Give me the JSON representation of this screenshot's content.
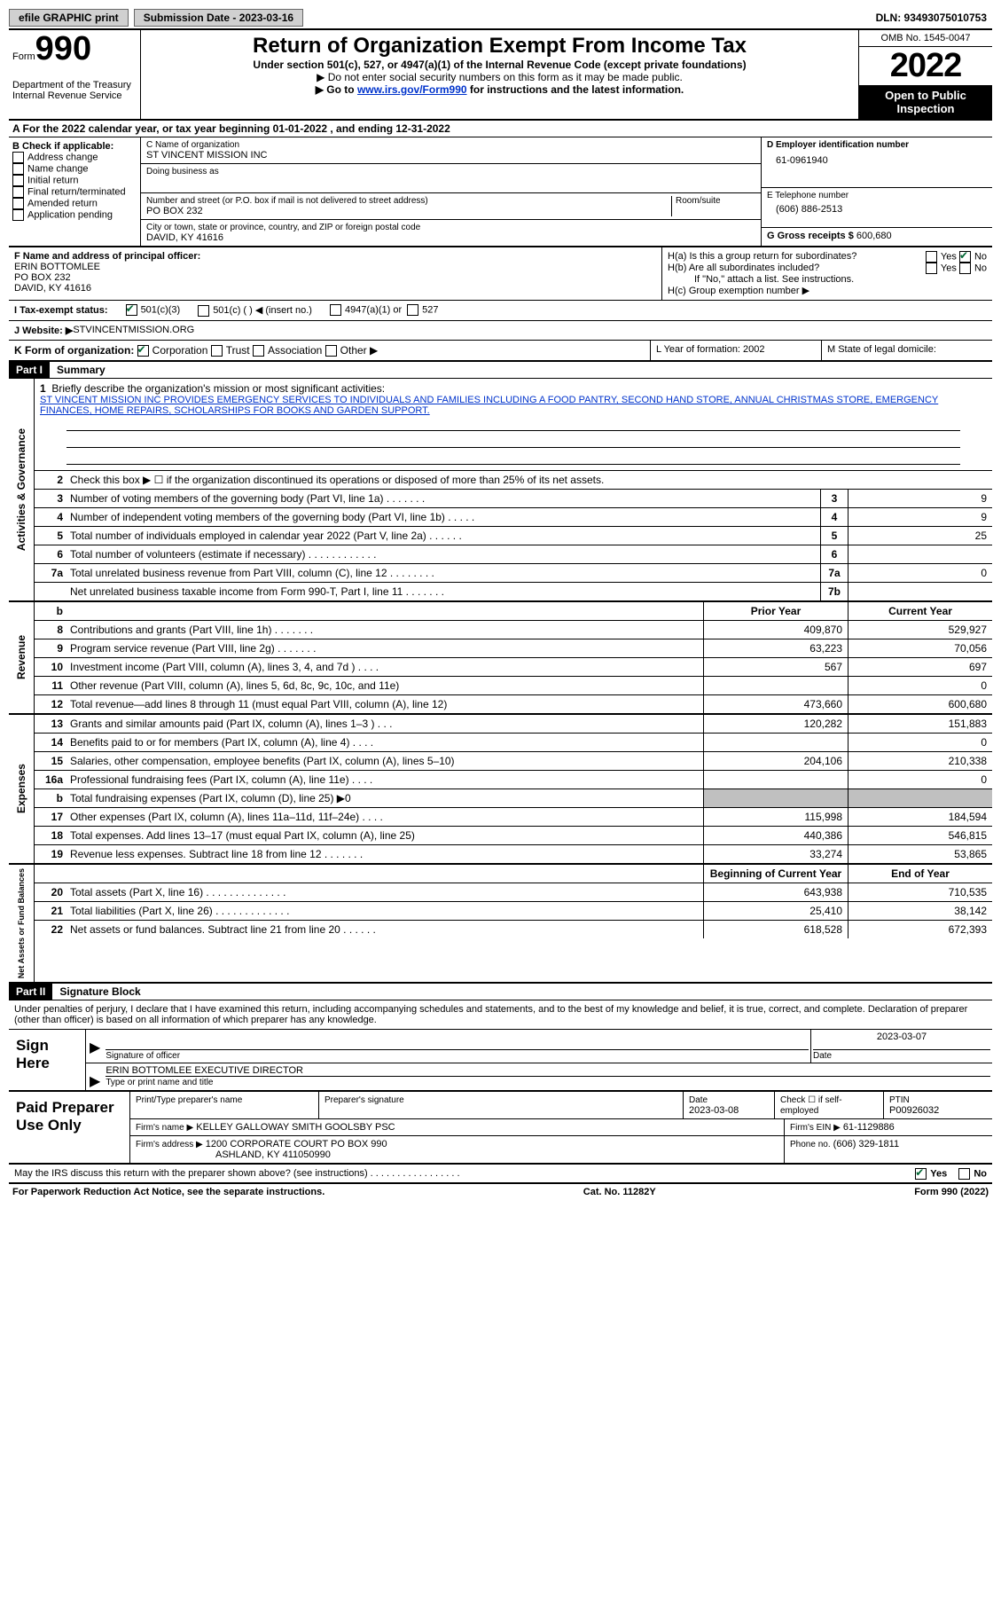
{
  "topbar": {
    "efile_label": "efile GRAPHIC print",
    "submission_label": "Submission Date - 2023-03-16",
    "dln": "DLN: 93493075010753"
  },
  "header": {
    "form_prefix": "Form",
    "form_number": "990",
    "title": "Return of Organization Exempt From Income Tax",
    "subtitle": "Under section 501(c), 527, or 4947(a)(1) of the Internal Revenue Code (except private foundations)",
    "note1": "▶ Do not enter social security numbers on this form as it may be made public.",
    "note2_prefix": "▶ Go to ",
    "note2_link": "www.irs.gov/Form990",
    "note2_suffix": " for instructions and the latest information.",
    "dept": "Department of the Treasury",
    "irs": "Internal Revenue Service",
    "omb": "OMB No. 1545-0047",
    "year": "2022",
    "open": "Open to Public Inspection"
  },
  "sectionA": "A For the 2022 calendar year, or tax year beginning 01-01-2022     , and ending 12-31-2022",
  "colB": {
    "label": "B Check if applicable:",
    "items": [
      "Address change",
      "Name change",
      "Initial return",
      "Final return/terminated",
      "Amended return",
      "Application pending"
    ]
  },
  "colC": {
    "name_label": "C Name of organization",
    "name": "ST VINCENT MISSION INC",
    "dba_label": "Doing business as",
    "dba": "",
    "street_label": "Number and street (or P.O. box if mail is not delivered to street address)",
    "room_label": "Room/suite",
    "street": "PO BOX 232",
    "city_label": "City or town, state or province, country, and ZIP or foreign postal code",
    "city": "DAVID, KY  41616"
  },
  "colD": {
    "ein_label": "D Employer identification number",
    "ein": "61-0961940",
    "phone_label": "E Telephone number",
    "phone": "(606) 886-2513",
    "gross_label": "G Gross receipts $",
    "gross": "600,680"
  },
  "colF": {
    "label": "F Name and address of principal officer:",
    "name": "ERIN BOTTOMLEE",
    "street": "PO BOX 232",
    "city": "DAVID, KY  41616"
  },
  "colH": {
    "a": "H(a)  Is this a group return for subordinates?",
    "b": "H(b)  Are all subordinates included?",
    "note": "If \"No,\" attach a list. See instructions.",
    "c": "H(c)  Group exemption number ▶"
  },
  "rowI": {
    "label": "I   Tax-exempt status:",
    "opt1": "501(c)(3)",
    "opt2": "501(c) (  ) ◀ (insert no.)",
    "opt3": "4947(a)(1) or",
    "opt4": "527"
  },
  "rowJ": {
    "label": "J   Website: ▶ ",
    "url": "STVINCENTMISSION.ORG"
  },
  "rowK": {
    "label": "K Form of organization:",
    "opts": [
      "Corporation",
      "Trust",
      "Association",
      "Other ▶"
    ]
  },
  "rowL": "L Year of formation: 2002",
  "rowM": "M State of legal domicile:",
  "part1": {
    "header": "Part I",
    "title": "Summary",
    "side_ag": "Activities & Governance",
    "side_rev": "Revenue",
    "side_exp": "Expenses",
    "side_na": "Net Assets or Fund Balances",
    "l1_label": "Briefly describe the organization's mission or most significant activities:",
    "l1_text": "ST VINCENT MISSION INC PROVIDES EMERGENCY SERVICES TO INDIVIDUALS AND FAMILIES INCLUDING A FOOD PANTRY, SECOND HAND STORE, ANNUAL CHRISTMAS STORE, EMERGENCY FINANCES, HOME REPAIRS, SCHOLARSHIPS FOR BOOKS AND GARDEN SUPPORT.",
    "l2": "Check this box ▶ ☐  if the organization discontinued its operations or disposed of more than 25% of its net assets.",
    "lines_ag": [
      {
        "n": "3",
        "t": "Number of voting members of the governing body (Part VI, line 1a)  .    .    .    .    .    .    .",
        "r": "3",
        "v": "9"
      },
      {
        "n": "4",
        "t": "Number of independent voting members of the governing body (Part VI, line 1b)  .    .    .    .    .",
        "r": "4",
        "v": "9"
      },
      {
        "n": "5",
        "t": "Total number of individuals employed in calendar year 2022 (Part V, line 2a)  .    .    .    .    .    .",
        "r": "5",
        "v": "25"
      },
      {
        "n": "6",
        "t": "Total number of volunteers (estimate if necessary)   .    .    .    .    .    .    .    .    .    .    .    .",
        "r": "6",
        "v": ""
      },
      {
        "n": "7a",
        "t": "Total unrelated business revenue from Part VIII, column (C), line 12   .    .    .    .    .    .    .    .",
        "r": "7a",
        "v": "0"
      },
      {
        "n": "",
        "t": "Net unrelated business taxable income from Form 990-T, Part I, line 11   .    .    .    .    .    .    .",
        "r": "7b",
        "v": ""
      }
    ],
    "col_prior": "Prior Year",
    "col_curr": "Current Year",
    "lines_rev": [
      {
        "n": "8",
        "t": "Contributions and grants (Part VIII, line 1h)   .    .    .    .    .    .    .",
        "p": "409,870",
        "c": "529,927"
      },
      {
        "n": "9",
        "t": "Program service revenue (Part VIII, line 2g)   .    .    .    .    .    .    .",
        "p": "63,223",
        "c": "70,056"
      },
      {
        "n": "10",
        "t": "Investment income (Part VIII, column (A), lines 3, 4, and 7d )   .    .    .    .",
        "p": "567",
        "c": "697"
      },
      {
        "n": "11",
        "t": "Other revenue (Part VIII, column (A), lines 5, 6d, 8c, 9c, 10c, and 11e)",
        "p": "",
        "c": "0"
      },
      {
        "n": "12",
        "t": "Total revenue—add lines 8 through 11 (must equal Part VIII, column (A), line 12)",
        "p": "473,660",
        "c": "600,680"
      }
    ],
    "lines_exp": [
      {
        "n": "13",
        "t": "Grants and similar amounts paid (Part IX, column (A), lines 1–3 )  .    .    .",
        "p": "120,282",
        "c": "151,883"
      },
      {
        "n": "14",
        "t": "Benefits paid to or for members (Part IX, column (A), line 4)   .    .    .    .",
        "p": "",
        "c": "0"
      },
      {
        "n": "15",
        "t": "Salaries, other compensation, employee benefits (Part IX, column (A), lines 5–10)",
        "p": "204,106",
        "c": "210,338"
      },
      {
        "n": "16a",
        "t": "Professional fundraising fees (Part IX, column (A), line 11e)   .    .    .    .",
        "p": "",
        "c": "0"
      },
      {
        "n": "b",
        "t": "Total fundraising expenses (Part IX, column (D), line 25) ▶0",
        "p": "grey",
        "c": "grey"
      },
      {
        "n": "17",
        "t": "Other expenses (Part IX, column (A), lines 11a–11d, 11f–24e)   .    .    .    .",
        "p": "115,998",
        "c": "184,594"
      },
      {
        "n": "18",
        "t": "Total expenses. Add lines 13–17 (must equal Part IX, column (A), line 25)",
        "p": "440,386",
        "c": "546,815"
      },
      {
        "n": "19",
        "t": "Revenue less expenses. Subtract line 18 from line 12  .    .    .    .    .    .    .",
        "p": "33,274",
        "c": "53,865"
      }
    ],
    "col_beg": "Beginning of Current Year",
    "col_end": "End of Year",
    "lines_na": [
      {
        "n": "20",
        "t": "Total assets (Part X, line 16)  .    .    .    .    .    .    .    .    .    .    .    .    .    .",
        "p": "643,938",
        "c": "710,535"
      },
      {
        "n": "21",
        "t": "Total liabilities (Part X, line 26)  .    .    .    .    .    .    .    .    .    .    .    .    .",
        "p": "25,410",
        "c": "38,142"
      },
      {
        "n": "22",
        "t": "Net assets or fund balances. Subtract line 21 from line 20   .    .    .    .    .    .",
        "p": "618,528",
        "c": "672,393"
      }
    ]
  },
  "part2": {
    "header": "Part II",
    "title": "Signature Block",
    "penalty": "Under penalties of perjury, I declare that I have examined this return, including accompanying schedules and statements, and to the best of my knowledge and belief, it is true, correct, and complete. Declaration of preparer (other than officer) is based on all information of which preparer has any knowledge.",
    "sign_here": "Sign Here",
    "sig_officer": "Signature of officer",
    "sig_date": "2023-03-07",
    "date_label": "Date",
    "officer_name": "ERIN BOTTOMLEE  EXECUTIVE DIRECTOR",
    "type_name": "Type or print name and title",
    "paid": "Paid Preparer Use Only",
    "print_prep": "Print/Type preparer's name",
    "prep_sig": "Preparer's signature",
    "prep_date_label": "Date",
    "prep_date": "2023-03-08",
    "check_self": "Check ☐ if self-employed",
    "ptin_label": "PTIN",
    "ptin": "P00926032",
    "firm_name_label": "Firm's name     ▶",
    "firm_name": "KELLEY GALLOWAY SMITH GOOLSBY PSC",
    "firm_ein_label": "Firm's EIN ▶",
    "firm_ein": "61-1129886",
    "firm_addr_label": "Firm's address ▶",
    "firm_addr": "1200 CORPORATE COURT PO BOX 990",
    "firm_city": "ASHLAND, KY  411050990",
    "firm_phone_label": "Phone no.",
    "firm_phone": "(606) 329-1811",
    "discuss": "May the IRS discuss this return with the preparer shown above? (see instructions)   .    .    .    .    .    .    .    .    .    .    .    .    .    .    .    .    .",
    "yes": "Yes",
    "no": "No"
  },
  "footer": {
    "paperwork": "For Paperwork Reduction Act Notice, see the separate instructions.",
    "cat": "Cat. No. 11282Y",
    "form": "Form 990 (2022)"
  }
}
